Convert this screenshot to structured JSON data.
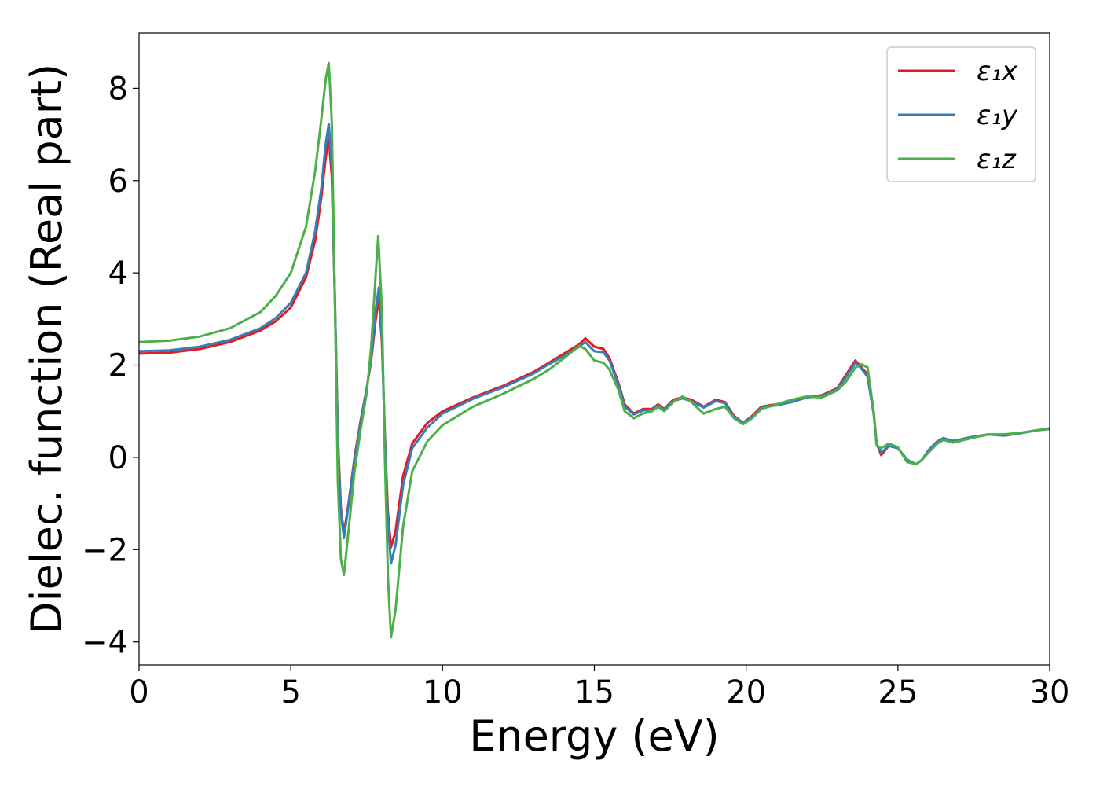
{
  "chart_data": {
    "type": "line",
    "xlabel": "Energy (eV)",
    "ylabel": "Dielec. function (Real part)",
    "xlim": [
      0,
      30
    ],
    "ylim": [
      -4.5,
      9.2
    ],
    "xticks": [
      0,
      5,
      10,
      15,
      20,
      25,
      30
    ],
    "xtick_labels": [
      "0",
      "5",
      "10",
      "15",
      "20",
      "25",
      "30"
    ],
    "yticks": [
      -4,
      -2,
      0,
      2,
      4,
      6,
      8
    ],
    "ytick_labels": [
      "−4",
      "−2",
      "0",
      "2",
      "4",
      "6",
      "8"
    ],
    "grid": false,
    "legend_position": "top-right",
    "series": [
      {
        "name": "ε₁x",
        "color": "#e41a1c",
        "points": [
          [
            0,
            2.25
          ],
          [
            1,
            2.27
          ],
          [
            2,
            2.35
          ],
          [
            3,
            2.5
          ],
          [
            4,
            2.75
          ],
          [
            4.5,
            2.95
          ],
          [
            5,
            3.25
          ],
          [
            5.5,
            3.9
          ],
          [
            5.8,
            4.7
          ],
          [
            6.0,
            5.6
          ],
          [
            6.15,
            6.5
          ],
          [
            6.25,
            6.92
          ],
          [
            6.35,
            6.1
          ],
          [
            6.45,
            3.5
          ],
          [
            6.55,
            0.5
          ],
          [
            6.65,
            -1.1
          ],
          [
            6.75,
            -1.65
          ],
          [
            6.9,
            -1.0
          ],
          [
            7.1,
            0.0
          ],
          [
            7.3,
            0.8
          ],
          [
            7.5,
            1.5
          ],
          [
            7.65,
            2.1
          ],
          [
            7.8,
            3.0
          ],
          [
            7.9,
            3.45
          ],
          [
            8.0,
            2.5
          ],
          [
            8.1,
            0.5
          ],
          [
            8.2,
            -1.2
          ],
          [
            8.3,
            -1.95
          ],
          [
            8.45,
            -1.6
          ],
          [
            8.7,
            -0.4
          ],
          [
            9.0,
            0.3
          ],
          [
            9.5,
            0.75
          ],
          [
            10.0,
            1.0
          ],
          [
            11.0,
            1.3
          ],
          [
            12.0,
            1.55
          ],
          [
            13.0,
            1.85
          ],
          [
            13.5,
            2.05
          ],
          [
            14.0,
            2.25
          ],
          [
            14.5,
            2.45
          ],
          [
            14.7,
            2.58
          ],
          [
            15.0,
            2.4
          ],
          [
            15.3,
            2.35
          ],
          [
            15.5,
            2.15
          ],
          [
            15.8,
            1.6
          ],
          [
            16.0,
            1.15
          ],
          [
            16.3,
            0.95
          ],
          [
            16.6,
            1.05
          ],
          [
            16.9,
            1.05
          ],
          [
            17.1,
            1.15
          ],
          [
            17.3,
            1.05
          ],
          [
            17.6,
            1.25
          ],
          [
            17.9,
            1.3
          ],
          [
            18.2,
            1.25
          ],
          [
            18.6,
            1.1
          ],
          [
            19.0,
            1.25
          ],
          [
            19.3,
            1.2
          ],
          [
            19.6,
            0.9
          ],
          [
            19.9,
            0.75
          ],
          [
            20.2,
            0.9
          ],
          [
            20.5,
            1.1
          ],
          [
            21.0,
            1.15
          ],
          [
            21.5,
            1.2
          ],
          [
            22.0,
            1.3
          ],
          [
            22.5,
            1.35
          ],
          [
            23.0,
            1.5
          ],
          [
            23.3,
            1.8
          ],
          [
            23.6,
            2.1
          ],
          [
            23.8,
            1.95
          ],
          [
            24.0,
            1.8
          ],
          [
            24.2,
            1.0
          ],
          [
            24.3,
            0.3
          ],
          [
            24.45,
            0.05
          ],
          [
            24.7,
            0.25
          ],
          [
            25.0,
            0.2
          ],
          [
            25.3,
            -0.05
          ],
          [
            25.6,
            -0.15
          ],
          [
            25.8,
            -0.05
          ],
          [
            26.0,
            0.15
          ],
          [
            26.3,
            0.35
          ],
          [
            26.5,
            0.4
          ],
          [
            26.8,
            0.35
          ],
          [
            27.0,
            0.38
          ],
          [
            27.5,
            0.45
          ],
          [
            28.0,
            0.5
          ],
          [
            28.5,
            0.48
          ],
          [
            29.0,
            0.52
          ],
          [
            29.5,
            0.58
          ],
          [
            30.0,
            0.62
          ]
        ]
      },
      {
        "name": "ε₁y",
        "color": "#377eb8",
        "points": [
          [
            0,
            2.3
          ],
          [
            1,
            2.32
          ],
          [
            2,
            2.4
          ],
          [
            3,
            2.55
          ],
          [
            4,
            2.8
          ],
          [
            4.5,
            3.02
          ],
          [
            5,
            3.35
          ],
          [
            5.5,
            4.0
          ],
          [
            5.8,
            4.9
          ],
          [
            6.0,
            5.8
          ],
          [
            6.15,
            6.8
          ],
          [
            6.25,
            7.23
          ],
          [
            6.35,
            6.3
          ],
          [
            6.45,
            3.5
          ],
          [
            6.55,
            0.4
          ],
          [
            6.65,
            -1.2
          ],
          [
            6.75,
            -1.75
          ],
          [
            6.9,
            -1.05
          ],
          [
            7.1,
            -0.05
          ],
          [
            7.3,
            0.75
          ],
          [
            7.5,
            1.5
          ],
          [
            7.65,
            2.15
          ],
          [
            7.8,
            3.2
          ],
          [
            7.9,
            3.68
          ],
          [
            8.0,
            2.6
          ],
          [
            8.1,
            0.4
          ],
          [
            8.2,
            -1.4
          ],
          [
            8.3,
            -2.3
          ],
          [
            8.45,
            -1.9
          ],
          [
            8.7,
            -0.6
          ],
          [
            9.0,
            0.2
          ],
          [
            9.5,
            0.65
          ],
          [
            10.0,
            0.95
          ],
          [
            11.0,
            1.27
          ],
          [
            12.0,
            1.52
          ],
          [
            13.0,
            1.82
          ],
          [
            13.5,
            2.02
          ],
          [
            14.0,
            2.2
          ],
          [
            14.5,
            2.4
          ],
          [
            14.7,
            2.5
          ],
          [
            15.0,
            2.3
          ],
          [
            15.3,
            2.28
          ],
          [
            15.5,
            2.1
          ],
          [
            15.8,
            1.55
          ],
          [
            16.0,
            1.1
          ],
          [
            16.3,
            0.93
          ],
          [
            16.6,
            1.02
          ],
          [
            16.9,
            1.03
          ],
          [
            17.1,
            1.12
          ],
          [
            17.3,
            1.03
          ],
          [
            17.6,
            1.22
          ],
          [
            17.9,
            1.28
          ],
          [
            18.2,
            1.22
          ],
          [
            18.6,
            1.08
          ],
          [
            19.0,
            1.22
          ],
          [
            19.3,
            1.18
          ],
          [
            19.6,
            0.88
          ],
          [
            19.9,
            0.75
          ],
          [
            20.2,
            0.88
          ],
          [
            20.5,
            1.08
          ],
          [
            21.0,
            1.13
          ],
          [
            21.5,
            1.2
          ],
          [
            22.0,
            1.3
          ],
          [
            22.5,
            1.33
          ],
          [
            23.0,
            1.48
          ],
          [
            23.3,
            1.75
          ],
          [
            23.6,
            2.05
          ],
          [
            23.8,
            1.92
          ],
          [
            24.0,
            1.75
          ],
          [
            24.2,
            0.95
          ],
          [
            24.3,
            0.3
          ],
          [
            24.45,
            0.1
          ],
          [
            24.7,
            0.25
          ],
          [
            25.0,
            0.2
          ],
          [
            25.3,
            -0.05
          ],
          [
            25.6,
            -0.15
          ],
          [
            25.8,
            -0.05
          ],
          [
            26.0,
            0.15
          ],
          [
            26.3,
            0.35
          ],
          [
            26.5,
            0.42
          ],
          [
            26.8,
            0.36
          ],
          [
            27.0,
            0.38
          ],
          [
            27.5,
            0.45
          ],
          [
            28.0,
            0.5
          ],
          [
            28.5,
            0.47
          ],
          [
            29.0,
            0.52
          ],
          [
            29.5,
            0.58
          ],
          [
            30.0,
            0.62
          ]
        ]
      },
      {
        "name": "ε₁z",
        "color": "#4daf4a",
        "points": [
          [
            0,
            2.5
          ],
          [
            1,
            2.53
          ],
          [
            2,
            2.62
          ],
          [
            3,
            2.8
          ],
          [
            4,
            3.15
          ],
          [
            4.5,
            3.5
          ],
          [
            5,
            4.0
          ],
          [
            5.5,
            5.0
          ],
          [
            5.8,
            6.2
          ],
          [
            6.0,
            7.3
          ],
          [
            6.15,
            8.2
          ],
          [
            6.25,
            8.55
          ],
          [
            6.35,
            7.3
          ],
          [
            6.45,
            3.5
          ],
          [
            6.55,
            -0.5
          ],
          [
            6.65,
            -2.2
          ],
          [
            6.75,
            -2.55
          ],
          [
            6.9,
            -1.6
          ],
          [
            7.1,
            -0.3
          ],
          [
            7.3,
            0.6
          ],
          [
            7.5,
            1.4
          ],
          [
            7.65,
            2.4
          ],
          [
            7.8,
            4.0
          ],
          [
            7.88,
            4.8
          ],
          [
            8.0,
            3.2
          ],
          [
            8.1,
            0.0
          ],
          [
            8.2,
            -2.6
          ],
          [
            8.3,
            -3.9
          ],
          [
            8.45,
            -3.3
          ],
          [
            8.7,
            -1.5
          ],
          [
            9.0,
            -0.3
          ],
          [
            9.5,
            0.35
          ],
          [
            10.0,
            0.7
          ],
          [
            11.0,
            1.1
          ],
          [
            12.0,
            1.38
          ],
          [
            13.0,
            1.7
          ],
          [
            13.5,
            1.9
          ],
          [
            14.0,
            2.15
          ],
          [
            14.5,
            2.42
          ],
          [
            14.7,
            2.35
          ],
          [
            15.0,
            2.1
          ],
          [
            15.3,
            2.05
          ],
          [
            15.5,
            1.9
          ],
          [
            15.8,
            1.45
          ],
          [
            16.0,
            1.0
          ],
          [
            16.3,
            0.85
          ],
          [
            16.6,
            0.95
          ],
          [
            16.9,
            1.0
          ],
          [
            17.1,
            1.1
          ],
          [
            17.3,
            1.0
          ],
          [
            17.6,
            1.2
          ],
          [
            17.9,
            1.32
          ],
          [
            18.2,
            1.2
          ],
          [
            18.6,
            0.95
          ],
          [
            19.0,
            1.05
          ],
          [
            19.3,
            1.1
          ],
          [
            19.6,
            0.85
          ],
          [
            19.9,
            0.72
          ],
          [
            20.2,
            0.85
          ],
          [
            20.5,
            1.05
          ],
          [
            21.0,
            1.15
          ],
          [
            21.5,
            1.25
          ],
          [
            22.0,
            1.32
          ],
          [
            22.5,
            1.3
          ],
          [
            23.0,
            1.45
          ],
          [
            23.3,
            1.65
          ],
          [
            23.6,
            1.95
          ],
          [
            23.8,
            2.02
          ],
          [
            24.0,
            1.95
          ],
          [
            24.2,
            1.0
          ],
          [
            24.3,
            0.25
          ],
          [
            24.45,
            0.2
          ],
          [
            24.7,
            0.3
          ],
          [
            25.0,
            0.22
          ],
          [
            25.3,
            -0.1
          ],
          [
            25.6,
            -0.15
          ],
          [
            25.8,
            -0.05
          ],
          [
            26.0,
            0.1
          ],
          [
            26.3,
            0.3
          ],
          [
            26.5,
            0.38
          ],
          [
            26.8,
            0.32
          ],
          [
            27.0,
            0.35
          ],
          [
            27.5,
            0.43
          ],
          [
            28.0,
            0.5
          ],
          [
            28.5,
            0.5
          ],
          [
            29.0,
            0.53
          ],
          [
            29.5,
            0.58
          ],
          [
            30.0,
            0.63
          ]
        ]
      }
    ]
  }
}
